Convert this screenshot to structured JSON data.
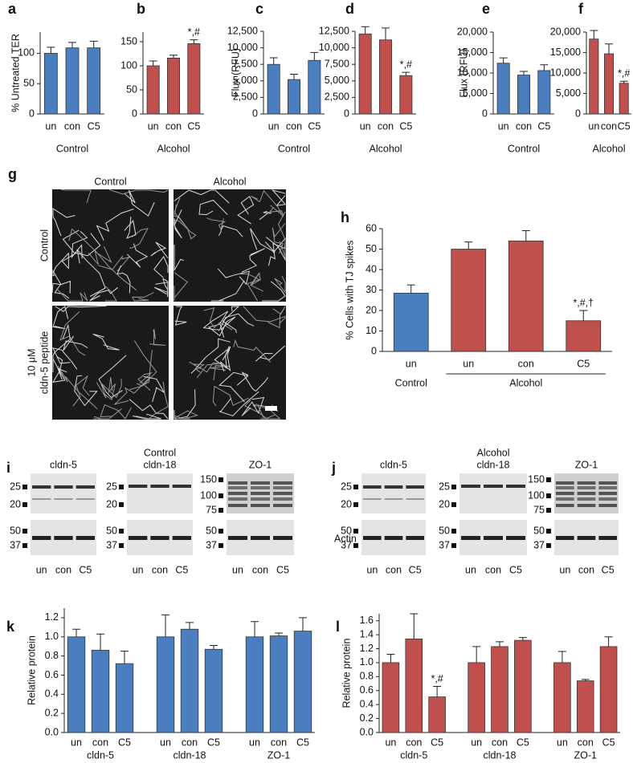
{
  "chart_data": [
    {
      "panel": "a",
      "type": "bar",
      "ylabel": "% Untreated TER",
      "ylim": [
        0,
        135
      ],
      "yticks": [
        0,
        50,
        100
      ],
      "groups": [
        {
          "name": "Control",
          "color": "#4a7ebf",
          "categories": [
            "un",
            "con",
            "C5"
          ],
          "values": [
            100,
            109,
            109
          ],
          "errors": [
            10,
            9,
            11
          ]
        }
      ]
    },
    {
      "panel": "b",
      "type": "bar",
      "ylim": [
        0,
        170
      ],
      "yticks": [
        0,
        50,
        100,
        150
      ],
      "groups": [
        {
          "name": "Alcohol",
          "color": "#c0504d",
          "categories": [
            "un",
            "con",
            "C5"
          ],
          "values": [
            100,
            116,
            146
          ],
          "errors": [
            10,
            6,
            8
          ],
          "annotations": [
            null,
            null,
            "*,#"
          ]
        }
      ]
    },
    {
      "panel": "c",
      "type": "bar",
      "ylabel": "Flux (RFU)",
      "ylim": [
        0,
        12500
      ],
      "yticks": [
        0,
        {
          "value": 2500,
          "label": "2,500"
        },
        {
          "value": 5000,
          "label": "5,000"
        },
        {
          "value": 7500,
          "label": "7,500"
        },
        {
          "value": 10000,
          "label": "10,000"
        },
        {
          "value": 12500,
          "label": "12,500"
        }
      ],
      "groups": [
        {
          "name": "Control",
          "color": "#4a7ebf",
          "categories": [
            "un",
            "con",
            "C5"
          ],
          "values": [
            7500,
            5200,
            8100
          ],
          "errors": [
            1000,
            800,
            1200
          ]
        }
      ]
    },
    {
      "panel": "d",
      "type": "bar",
      "ylim": [
        0,
        12500
      ],
      "yticks": [
        0,
        {
          "value": 2500,
          "label": "2,500"
        },
        {
          "value": 5000,
          "label": "5,000"
        },
        {
          "value": 7500,
          "label": "7,500"
        },
        {
          "value": 10000,
          "label": "10,000"
        },
        {
          "value": 12500,
          "label": "12,500"
        }
      ],
      "groups": [
        {
          "name": "Alcohol",
          "color": "#c0504d",
          "categories": [
            "un",
            "con",
            "C5"
          ],
          "values": [
            12100,
            11200,
            5800
          ],
          "errors": [
            1100,
            1800,
            500
          ],
          "annotations": [
            null,
            null,
            "*,#"
          ]
        }
      ]
    },
    {
      "panel": "e",
      "type": "bar",
      "ylabel": "Flux (RFU)",
      "ylim": [
        0,
        20000
      ],
      "yticks": [
        0,
        {
          "value": 5000,
          "label": "5,000"
        },
        {
          "value": 10000,
          "label": "10,000"
        },
        {
          "value": 15000,
          "label": "15,000"
        },
        {
          "value": 20000,
          "label": "20,000"
        }
      ],
      "groups": [
        {
          "name": "Control",
          "color": "#4a7ebf",
          "categories": [
            "un",
            "con",
            "C5"
          ],
          "values": [
            12400,
            9500,
            10600
          ],
          "errors": [
            1300,
            900,
            1400
          ]
        }
      ]
    },
    {
      "panel": "f",
      "type": "bar",
      "ylim": [
        0,
        20000
      ],
      "yticks": [
        0,
        {
          "value": 5000,
          "label": "5,000"
        },
        {
          "value": 10000,
          "label": "10,000"
        },
        {
          "value": 15000,
          "label": "15,000"
        },
        {
          "value": 20000,
          "label": "20,000"
        }
      ],
      "groups": [
        {
          "name": "Alcohol",
          "color": "#c0504d",
          "categories": [
            "un",
            "con",
            "C5"
          ],
          "values": [
            18300,
            14700,
            7500
          ],
          "errors": [
            2100,
            2400,
            500
          ],
          "annotations": [
            null,
            null,
            "*,#"
          ]
        }
      ]
    },
    {
      "panel": "h",
      "type": "bar",
      "ylabel": "% Cells with TJ spikes",
      "ylim": [
        0,
        60
      ],
      "yticks": [
        0,
        10,
        20,
        30,
        40,
        50,
        60
      ],
      "groups": [
        {
          "name": "Control",
          "color": "#4a7ebf",
          "categories": [
            "un"
          ],
          "values": [
            28.5
          ],
          "errors": [
            4
          ]
        },
        {
          "name": "Alcohol",
          "color": "#c0504d",
          "categories": [
            "un",
            "con",
            "C5"
          ],
          "values": [
            50,
            54,
            15
          ],
          "errors": [
            3.5,
            5,
            5
          ],
          "annotations": [
            null,
            null,
            "*,#,†"
          ]
        }
      ]
    },
    {
      "panel": "k",
      "type": "bar",
      "ylabel": "Relative protein",
      "ylim": [
        0,
        1.3
      ],
      "yticks": [
        {
          "value": 0,
          "label": "0.0"
        },
        0.2,
        0.4,
        0.6,
        0.8,
        {
          "value": 1,
          "label": "1.0"
        },
        1.2
      ],
      "groups": [
        {
          "name": "cldn-5",
          "color": "#4a7ebf",
          "categories": [
            "un",
            "con",
            "C5"
          ],
          "values": [
            1.0,
            0.86,
            0.72
          ],
          "errors": [
            0.08,
            0.17,
            0.13
          ]
        },
        {
          "name": "cldn-18",
          "color": "#4a7ebf",
          "categories": [
            "un",
            "con",
            "C5"
          ],
          "values": [
            1.0,
            1.08,
            0.87
          ],
          "errors": [
            0.23,
            0.07,
            0.04
          ]
        },
        {
          "name": "ZO-1",
          "color": "#4a7ebf",
          "categories": [
            "un",
            "con",
            "C5"
          ],
          "values": [
            1.0,
            1.01,
            1.06
          ],
          "errors": [
            0.16,
            0.03,
            0.14
          ]
        }
      ]
    },
    {
      "panel": "l",
      "type": "bar",
      "ylabel": "Relative protein",
      "ylim": [
        0,
        1.7
      ],
      "yticks": [
        {
          "value": 0,
          "label": "0.0"
        },
        0.2,
        0.4,
        0.6,
        0.8,
        {
          "value": 1,
          "label": "1.0"
        },
        1.2,
        1.4,
        1.6
      ],
      "groups": [
        {
          "name": "cldn-5",
          "color": "#c0504d",
          "categories": [
            "un",
            "con",
            "C5"
          ],
          "values": [
            1.0,
            1.34,
            0.51
          ],
          "errors": [
            0.12,
            0.36,
            0.15
          ],
          "annotations": [
            null,
            null,
            "*,#"
          ]
        },
        {
          "name": "cldn-18",
          "color": "#c0504d",
          "categories": [
            "un",
            "con",
            "C5"
          ],
          "values": [
            1.0,
            1.23,
            1.32
          ],
          "errors": [
            0.23,
            0.07,
            0.04
          ]
        },
        {
          "name": "ZO-1",
          "color": "#c0504d",
          "categories": [
            "un",
            "con",
            "C5"
          ],
          "values": [
            1.0,
            0.74,
            1.23
          ],
          "errors": [
            0.16,
            0.02,
            0.14
          ]
        }
      ]
    }
  ],
  "micrograph": {
    "panel": "g",
    "columns": [
      "Control",
      "Alcohol"
    ],
    "rows": [
      [
        "Control"
      ],
      [
        "10 μM",
        "cldn-5 peptide"
      ]
    ]
  },
  "blots": [
    {
      "panel": "i",
      "condition": "Control",
      "lanes": [
        "un",
        "con",
        "C5"
      ],
      "antibodies": [
        {
          "label": "cldn-5",
          "markers": [
            25,
            20
          ]
        },
        {
          "label": "cldn-18",
          "markers": [
            25,
            20
          ]
        },
        {
          "label": "ZO-1",
          "markers": [
            150,
            100,
            75
          ]
        }
      ],
      "loading_markers": [
        50,
        37
      ]
    },
    {
      "panel": "j",
      "condition": "Alcohol",
      "lanes": [
        "un",
        "con",
        "C5"
      ],
      "loading_label": "Actin",
      "antibodies": [
        {
          "label": "cldn-5",
          "markers": [
            25,
            20
          ]
        },
        {
          "label": "cldn-18",
          "markers": [
            25,
            20
          ]
        },
        {
          "label": "ZO-1",
          "markers": [
            150,
            100,
            75
          ]
        }
      ],
      "loading_markers": [
        50,
        37
      ]
    }
  ]
}
